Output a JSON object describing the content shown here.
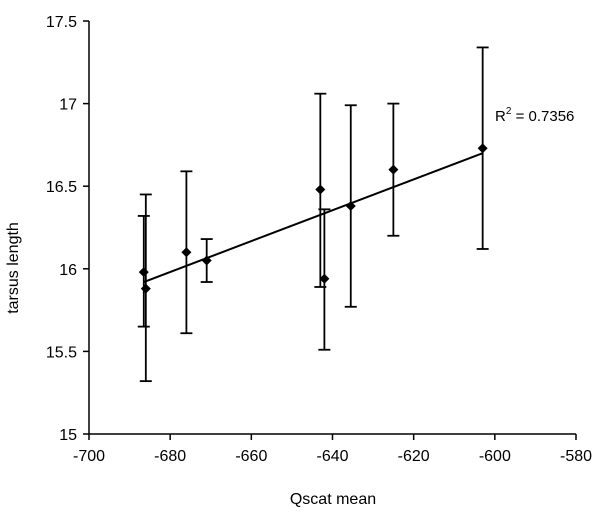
{
  "chart_data": {
    "type": "scatter",
    "title": "",
    "xlabel": "Qscat mean",
    "ylabel": "tarsus length",
    "xlim": [
      -700,
      -580
    ],
    "ylim": [
      15,
      17.5
    ],
    "x_ticks": [
      -700,
      -680,
      -660,
      -640,
      -620,
      -600,
      -580
    ],
    "y_ticks": [
      15,
      15.5,
      16,
      16.5,
      17,
      17.5
    ],
    "x_tick_labels": [
      "-700",
      "-680",
      "-660",
      "-640",
      "-620",
      "-600",
      "-580"
    ],
    "y_tick_labels": [
      "15",
      "15.5",
      "16",
      "16.5",
      "17",
      "17.5"
    ],
    "grid": false,
    "legend": "none",
    "marker": "diamond",
    "points": [
      {
        "x": -686.5,
        "y": 15.98,
        "low": 15.65,
        "high": 16.32
      },
      {
        "x": -686.0,
        "y": 15.88,
        "low": 15.32,
        "high": 16.45
      },
      {
        "x": -676.0,
        "y": 16.1,
        "low": 15.61,
        "high": 16.59
      },
      {
        "x": -671.0,
        "y": 16.05,
        "low": 15.92,
        "high": 16.18
      },
      {
        "x": -643.0,
        "y": 16.48,
        "low": 15.89,
        "high": 17.06
      },
      {
        "x": -642.0,
        "y": 15.94,
        "low": 15.51,
        "high": 16.36
      },
      {
        "x": -635.5,
        "y": 16.38,
        "low": 15.77,
        "high": 16.99
      },
      {
        "x": -625.0,
        "y": 16.6,
        "low": 16.2,
        "high": 17.0
      },
      {
        "x": -603.0,
        "y": 16.73,
        "low": 16.12,
        "high": 17.34
      }
    ],
    "trendline": {
      "x_start": -686.5,
      "y_start": 15.92,
      "x_end": -603.0,
      "y_end": 16.7,
      "r2_prefix": "R",
      "r2_sup": "2",
      "r2_value": " = 0.7356"
    },
    "colors": {
      "marker": "#000000",
      "line": "#000000",
      "axis": "#000000"
    }
  }
}
